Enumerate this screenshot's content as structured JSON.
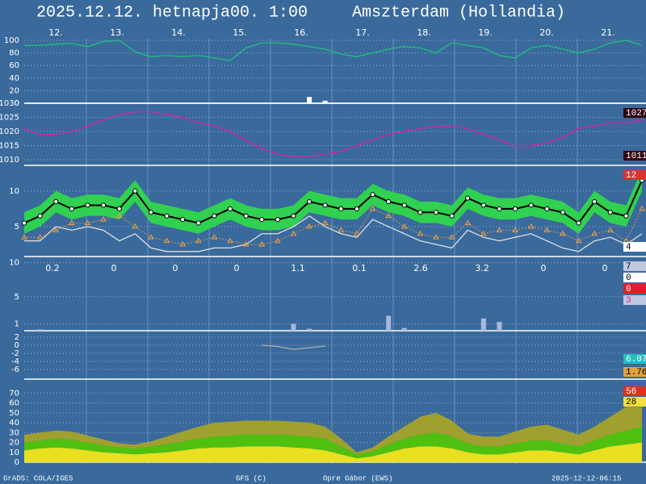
{
  "header": {
    "title": "2025.12.12. hetnapja00. 1:00",
    "location": "Amszterdam (Hollandia)"
  },
  "days": [
    "12.",
    "13.",
    "14.",
    "15.",
    "16.",
    "17.",
    "18.",
    "19.",
    "20.",
    "21."
  ],
  "footer": [
    "GrADS: COLA/IGES",
    "GFS (C)",
    "Opre Gábor (EWS)",
    "2025-12-12-06:15"
  ],
  "chart_data": [
    {
      "type": "line",
      "ylim": [
        0,
        100
      ],
      "yticks": [
        0,
        20,
        40,
        60,
        80,
        100
      ],
      "grid": true,
      "series": [
        {
          "type": "bars",
          "color": "#ffffff",
          "values": [
            0,
            0,
            0,
            0,
            0,
            0,
            0,
            0,
            0,
            0,
            0,
            0,
            0,
            0,
            0,
            0,
            0,
            0,
            10,
            4,
            0,
            0,
            0,
            0,
            0,
            0,
            0,
            0,
            0,
            0,
            0,
            0,
            0,
            0,
            0,
            0,
            0,
            0,
            0,
            0
          ]
        },
        {
          "type": "line",
          "color": "#20c080",
          "values": [
            92,
            92,
            94,
            95,
            90,
            98,
            100,
            82,
            74,
            76,
            74,
            76,
            72,
            68,
            88,
            96,
            96,
            94,
            90,
            86,
            78,
            74,
            80,
            86,
            90,
            88,
            80,
            96,
            92,
            88,
            76,
            72,
            88,
            92,
            86,
            80,
            86,
            96,
            100,
            92
          ]
        }
      ],
      "badges": []
    },
    {
      "type": "line",
      "ylim": [
        1008,
        1030
      ],
      "yticks": [
        1010,
        1015,
        1020,
        1025,
        1030
      ],
      "grid": true,
      "series": [
        {
          "type": "line",
          "color": "#e020a0",
          "values": [
            1021,
            1019,
            1019,
            1020,
            1022,
            1024,
            1026,
            1027,
            1027,
            1026,
            1025,
            1023,
            1022,
            1020,
            1017,
            1014,
            1012,
            1011,
            1011,
            1012,
            1013,
            1015,
            1017,
            1019,
            1020,
            1021,
            1022,
            1022,
            1021,
            1019,
            1017,
            1015,
            1015,
            1016,
            1018,
            1021,
            1022,
            1023,
            1023,
            1024
          ]
        }
      ],
      "badges": [
        {
          "value": 1027,
          "color": "#300010"
        },
        {
          "value": 1011,
          "color": "#300010"
        }
      ]
    },
    {
      "type": "line",
      "ylim": [
        0.8,
        13.6
      ],
      "yticks": [
        5,
        10
      ],
      "grid": true,
      "series": [
        {
          "type": "band",
          "color": "#30d050",
          "high": [
            7,
            8,
            10,
            9,
            9.5,
            9.5,
            9,
            11.5,
            8.5,
            8,
            7.5,
            7,
            8,
            9,
            8,
            7.5,
            7.5,
            8,
            10,
            9.5,
            9,
            9,
            11,
            10,
            9.5,
            8.5,
            8.5,
            8,
            10.5,
            9.5,
            9,
            9,
            9.5,
            9,
            8.5,
            7,
            10,
            8.5,
            8,
            13
          ],
          "low": [
            4,
            5,
            7,
            6,
            6.5,
            6.5,
            6,
            8.5,
            5.5,
            5,
            4.5,
            4,
            5,
            6,
            5,
            4.5,
            4.5,
            5,
            7,
            6.5,
            6,
            6,
            8,
            7,
            6.5,
            5.5,
            5.5,
            5,
            7.5,
            6.5,
            6,
            6,
            6.5,
            6,
            5.5,
            4,
            7,
            5.5,
            5,
            10
          ]
        },
        {
          "type": "line",
          "color": "#e0e0e0",
          "values": [
            3,
            3,
            5,
            4.5,
            5,
            4.5,
            3,
            4,
            2,
            1.5,
            1.5,
            1.5,
            2,
            2,
            2.5,
            4,
            4,
            5,
            6.5,
            5,
            4,
            3.5,
            6,
            5,
            4,
            3,
            2.5,
            2,
            4.5,
            3.5,
            3,
            3.5,
            4,
            3,
            2,
            1.5,
            3,
            3.5,
            2.5,
            4
          ]
        },
        {
          "type": "triangles",
          "color": "#f0a040",
          "values": [
            3.5,
            3.5,
            4.5,
            5.5,
            5.5,
            6,
            6.5,
            5,
            3.5,
            3,
            2.5,
            3,
            3.5,
            3,
            2.5,
            2.5,
            3,
            4,
            5,
            5.5,
            4.5,
            4,
            7.5,
            6.5,
            5,
            4,
            3.5,
            3.5,
            5.5,
            4,
            4.5,
            4.5,
            5,
            4.5,
            4,
            3,
            4,
            4.5,
            3,
            7.5
          ]
        },
        {
          "type": "dots",
          "color": "#000000",
          "values": [
            5.5,
            6.5,
            8.5,
            7.5,
            8,
            8,
            7.5,
            10,
            7,
            6.5,
            6,
            5.5,
            6.5,
            7.5,
            6.5,
            6,
            6,
            6.5,
            8.5,
            8,
            7.5,
            7.5,
            9.5,
            8.5,
            8,
            7,
            7,
            6.5,
            9,
            8,
            7.5,
            7.5,
            8,
            7.5,
            7,
            5.5,
            8.5,
            7,
            6.5,
            11.5
          ]
        }
      ],
      "badges": [
        {
          "value": 12,
          "color": "#e03030"
        },
        {
          "value": 4,
          "color": "#ffffff",
          "text_color": "#000000"
        }
      ]
    },
    {
      "type": "bar",
      "ylim": [
        0,
        10.9
      ],
      "yticks": [
        1,
        5,
        10
      ],
      "grid": true,
      "daily": [
        0.2,
        0,
        0,
        0,
        1.1,
        0.1,
        2.6,
        3.2,
        0,
        0
      ],
      "series": [
        {
          "type": "bars",
          "color": "#a8b8d8",
          "values": [
            0,
            0.2,
            0,
            0,
            0,
            0,
            0,
            0,
            0,
            0,
            0,
            0,
            0,
            0,
            0,
            0,
            0,
            1,
            0.3,
            0,
            0,
            0,
            0,
            2.2,
            0.4,
            0,
            0,
            0,
            0,
            1.8,
            1.3,
            0,
            0,
            0,
            0,
            0,
            0,
            0,
            0,
            0
          ]
        }
      ],
      "badges": [
        {
          "value": 7,
          "color": "#c0c8e0",
          "text_color": "#000000"
        },
        {
          "value": 0,
          "color": "#ffffff",
          "text_color": "#000000"
        },
        {
          "value": 0,
          "color": "#e02020"
        },
        {
          "value": 3,
          "color": "#c0c8e0",
          "text_color": "#e020a0"
        }
      ]
    },
    {
      "type": "line",
      "ylim": [
        -8.4,
        3.6
      ],
      "yticks": [
        2,
        0,
        -2,
        -4,
        -6
      ],
      "grid": true,
      "series": [
        {
          "type": "line",
          "color": "#b0b0b0",
          "values": [
            null,
            null,
            null,
            null,
            null,
            null,
            null,
            null,
            null,
            null,
            null,
            null,
            null,
            null,
            null,
            0,
            -0.3,
            -1,
            -0.6,
            -0.2,
            null,
            null,
            null,
            null,
            null,
            null,
            null,
            null,
            null,
            null,
            null,
            null,
            null,
            null,
            null,
            null,
            null,
            null,
            null,
            null
          ]
        }
      ],
      "badges": [
        {
          "value": 6.07,
          "color": "#20c0c0"
        },
        {
          "value": 1.76,
          "color": "#e0a040",
          "text_color": "#000000"
        }
      ]
    },
    {
      "type": "area",
      "ylim": [
        0,
        80
      ],
      "yticks": [
        0,
        10,
        20,
        30,
        40,
        50,
        60,
        70
      ],
      "grid": true,
      "series": [
        {
          "type": "stack",
          "color": "#e8e020",
          "values": [
            12,
            14,
            15,
            14,
            12,
            10,
            9,
            8,
            9,
            10,
            12,
            14,
            15,
            15,
            16,
            16,
            16,
            15,
            14,
            12,
            8,
            4,
            6,
            10,
            14,
            16,
            16,
            14,
            10,
            8,
            8,
            10,
            12,
            12,
            10,
            8,
            12,
            16,
            18,
            20
          ]
        },
        {
          "type": "stack",
          "color": "#50c010",
          "values": [
            8,
            8,
            9,
            9,
            8,
            7,
            6,
            6,
            7,
            8,
            9,
            10,
            11,
            12,
            12,
            12,
            12,
            12,
            12,
            12,
            8,
            4,
            5,
            8,
            10,
            12,
            14,
            12,
            9,
            8,
            8,
            9,
            10,
            10,
            9,
            8,
            10,
            12,
            14,
            16
          ]
        },
        {
          "type": "stack",
          "color": "#a0a030",
          "values": [
            8,
            8,
            8,
            8,
            7,
            6,
            4,
            4,
            5,
            8,
            10,
            12,
            14,
            14,
            14,
            14,
            14,
            14,
            14,
            12,
            8,
            2,
            4,
            8,
            12,
            18,
            20,
            16,
            10,
            10,
            10,
            12,
            14,
            16,
            14,
            12,
            14,
            18,
            24,
            20
          ]
        }
      ],
      "badges": [
        {
          "value": 56,
          "color": "#e03020"
        },
        {
          "value": 28,
          "color": "#f0e040",
          "text_color": "#000000"
        }
      ]
    }
  ]
}
